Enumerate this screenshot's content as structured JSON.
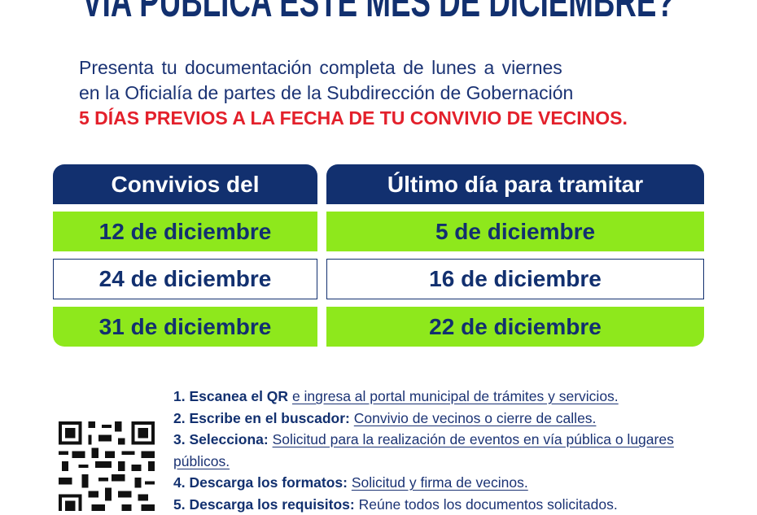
{
  "title": "VÍA PÚBLICA ESTE MES DE DICIEMBRE?",
  "intro": {
    "line1": "Presenta tu documentación completa de lunes a viernes",
    "line2": "en la Oficialía de partes de la Subdirección de Gobernación",
    "highlight": "5 DÍAS PREVIOS A LA FECHA DE TU CONVIVIO DE VECINOS."
  },
  "table": {
    "headers": [
      "Convivios del",
      "Último día para tramitar"
    ],
    "rows": [
      [
        "12 de diciembre",
        "5 de diciembre"
      ],
      [
        "24 de diciembre",
        "16 de diciembre"
      ],
      [
        "31 de diciembre",
        "22 de diciembre"
      ]
    ]
  },
  "steps": [
    {
      "label": "1. Escanea el QR",
      "text": "e ingresa al portal municipal de trámites y servicios."
    },
    {
      "label": "2. Escribe en el buscador:",
      "text": "Convivio de vecinos o cierre de calles."
    },
    {
      "label": "3. Selecciona:",
      "text": "Solicitud para la realización de eventos en vía pública o lugares públicos."
    },
    {
      "label": "4. Descarga los formatos:",
      "text": "Solicitud y firma de vecinos."
    },
    {
      "label": "5. Descarga los requisitos:",
      "text": "Reúne todos los documentos solicitados."
    }
  ],
  "colors": {
    "navy": "#12306f",
    "green": "#8ee81c",
    "red": "#e3202b"
  },
  "icons": {
    "qr": "qr-code-icon"
  }
}
